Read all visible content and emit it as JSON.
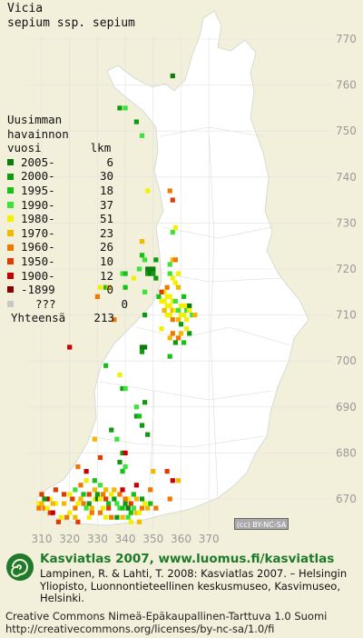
{
  "title": {
    "genus": "Vicia",
    "species": "sepium ssp. sepium"
  },
  "legend": {
    "heading_lines": [
      "Uusimman",
      "havainnon"
    ],
    "col_label": "vuosi",
    "col_count": "lkm",
    "items": [
      {
        "label": "2005-",
        "count": "6",
        "color": "#0b7d0b"
      },
      {
        "label": "2000-",
        "count": "30",
        "color": "#119a11"
      },
      {
        "label": "1995-",
        "count": "18",
        "color": "#18c018"
      },
      {
        "label": "1990-",
        "count": "37",
        "color": "#3ce33c"
      },
      {
        "label": "1980-",
        "count": "51",
        "color": "#f2f200"
      },
      {
        "label": "1970-",
        "count": "23",
        "color": "#f5b800"
      },
      {
        "label": "1960-",
        "count": "26",
        "color": "#f07800"
      },
      {
        "label": "1950-",
        "count": "10",
        "color": "#e03c00"
      },
      {
        "label": "1900-",
        "count": "12",
        "color": "#c80000"
      },
      {
        "label": "-1899",
        "count": "0",
        "color": "#880000"
      },
      {
        "label": "???",
        "count": "0",
        "color": "#c8c8c8"
      }
    ],
    "total_label": "Yhteensä",
    "total_value": "213"
  },
  "grid": {
    "x_labels": [
      "310",
      "320",
      "330",
      "340",
      "350",
      "360",
      "370"
    ],
    "y_labels": [
      "770",
      "760",
      "750",
      "740",
      "730",
      "720",
      "710",
      "700",
      "690",
      "680",
      "670"
    ]
  },
  "cc_badge": "(cc) BY-NC-SA",
  "footer": {
    "brand": "Kasviatlas 2007, www.luomus.fi/kasviatlas",
    "citation": "Lampinen, R. & Lahti, T. 2008: Kasviatlas 2007. – Helsingin Yliopisto, Luonnontieteellinen keskusmuseo, Kasvimuseo, Helsinki.",
    "license_line1": "Creative Commons Nimeä-Epäkaupallinen-Tarttuva 1.0 Suomi",
    "license_line2": "http://creativecommons.org/licenses/by-nc-sa/1.0/fi"
  },
  "observations": [
    {
      "e": 357,
      "n": 762,
      "c": 0
    },
    {
      "e": 338,
      "n": 755,
      "c": 1
    },
    {
      "e": 340,
      "n": 755,
      "c": 3
    },
    {
      "e": 344,
      "n": 752,
      "c": 1
    },
    {
      "e": 346,
      "n": 749,
      "c": 3
    },
    {
      "e": 348,
      "n": 737,
      "c": 4
    },
    {
      "e": 356,
      "n": 737,
      "c": 6
    },
    {
      "e": 357,
      "n": 735,
      "c": 7
    },
    {
      "e": 357,
      "n": 728,
      "c": 3
    },
    {
      "e": 358,
      "n": 729,
      "c": 4
    },
    {
      "e": 346,
      "n": 726,
      "c": 5
    },
    {
      "e": 347,
      "n": 722,
      "c": 3
    },
    {
      "e": 348,
      "n": 720,
      "c": 0
    },
    {
      "e": 349,
      "n": 720,
      "c": 0
    },
    {
      "e": 350,
      "n": 720,
      "c": 0
    },
    {
      "e": 348,
      "n": 719,
      "c": 1
    },
    {
      "e": 349,
      "n": 719,
      "c": 0
    },
    {
      "e": 350,
      "n": 719,
      "c": 1
    },
    {
      "e": 351,
      "n": 718,
      "c": 1
    },
    {
      "e": 351,
      "n": 722,
      "c": 1
    },
    {
      "e": 346,
      "n": 723,
      "c": 2
    },
    {
      "e": 345,
      "n": 720,
      "c": 3
    },
    {
      "e": 339,
      "n": 719,
      "c": 3
    },
    {
      "e": 340,
      "n": 719,
      "c": 2
    },
    {
      "e": 343,
      "n": 718,
      "c": 4
    },
    {
      "e": 347,
      "n": 715,
      "c": 3
    },
    {
      "e": 347,
      "n": 710,
      "c": 1
    },
    {
      "e": 340,
      "n": 716,
      "c": 2
    },
    {
      "e": 356,
      "n": 721,
      "c": 3
    },
    {
      "e": 357,
      "n": 722,
      "c": 5
    },
    {
      "e": 358,
      "n": 722,
      "c": 6
    },
    {
      "e": 359,
      "n": 719,
      "c": 4
    },
    {
      "e": 356,
      "n": 719,
      "c": 3
    },
    {
      "e": 357,
      "n": 718,
      "c": 4
    },
    {
      "e": 358,
      "n": 717,
      "c": 4
    },
    {
      "e": 359,
      "n": 716,
      "c": 5
    },
    {
      "e": 355,
      "n": 716,
      "c": 6
    },
    {
      "e": 354,
      "n": 715,
      "c": 4
    },
    {
      "e": 355,
      "n": 714,
      "c": 4
    },
    {
      "e": 356,
      "n": 714,
      "c": 4
    },
    {
      "e": 357,
      "n": 713,
      "c": 4
    },
    {
      "e": 358,
      "n": 713,
      "c": 3
    },
    {
      "e": 353,
      "n": 715,
      "c": 7
    },
    {
      "e": 352,
      "n": 714,
      "c": 2
    },
    {
      "e": 353,
      "n": 713,
      "c": 4
    },
    {
      "e": 354,
      "n": 713,
      "c": 4
    },
    {
      "e": 355,
      "n": 712,
      "c": 4
    },
    {
      "e": 356,
      "n": 712,
      "c": 4
    },
    {
      "e": 357,
      "n": 711,
      "c": 5
    },
    {
      "e": 358,
      "n": 711,
      "c": 4
    },
    {
      "e": 359,
      "n": 711,
      "c": 3
    },
    {
      "e": 360,
      "n": 712,
      "c": 4
    },
    {
      "e": 361,
      "n": 712,
      "c": 4
    },
    {
      "e": 362,
      "n": 712,
      "c": 4
    },
    {
      "e": 362,
      "n": 711,
      "c": 3
    },
    {
      "e": 363,
      "n": 712,
      "c": 0
    },
    {
      "e": 363,
      "n": 711,
      "c": 4
    },
    {
      "e": 361,
      "n": 710,
      "c": 4
    },
    {
      "e": 362,
      "n": 709,
      "c": 4
    },
    {
      "e": 364,
      "n": 710,
      "c": 3
    },
    {
      "e": 360,
      "n": 710,
      "c": 4
    },
    {
      "e": 359,
      "n": 709,
      "c": 5
    },
    {
      "e": 360,
      "n": 708,
      "c": 1
    },
    {
      "e": 356,
      "n": 710,
      "c": 4
    },
    {
      "e": 355,
      "n": 710,
      "c": 4
    },
    {
      "e": 354,
      "n": 711,
      "c": 5
    },
    {
      "e": 357,
      "n": 709,
      "c": 6
    },
    {
      "e": 365,
      "n": 710,
      "c": 5
    },
    {
      "e": 361,
      "n": 714,
      "c": 2
    },
    {
      "e": 346,
      "n": 703,
      "c": 0
    },
    {
      "e": 347,
      "n": 703,
      "c": 0
    },
    {
      "e": 346,
      "n": 702,
      "c": 1
    },
    {
      "e": 356,
      "n": 701,
      "c": 2
    },
    {
      "e": 353,
      "n": 707,
      "c": 4
    },
    {
      "e": 356,
      "n": 705,
      "c": 5
    },
    {
      "e": 357,
      "n": 706,
      "c": 6
    },
    {
      "e": 358,
      "n": 704,
      "c": 1
    },
    {
      "e": 359,
      "n": 705,
      "c": 6
    },
    {
      "e": 360,
      "n": 706,
      "c": 5
    },
    {
      "e": 361,
      "n": 704,
      "c": 2
    },
    {
      "e": 363,
      "n": 706,
      "c": 1
    },
    {
      "e": 362,
      "n": 707,
      "c": 4
    },
    {
      "e": 333,
      "n": 716,
      "c": 2
    },
    {
      "e": 334,
      "n": 716,
      "c": 5
    },
    {
      "e": 331,
      "n": 716,
      "c": 4
    },
    {
      "e": 330,
      "n": 714,
      "c": 6
    },
    {
      "e": 336,
      "n": 709,
      "c": 6
    },
    {
      "e": 320,
      "n": 703,
      "c": 8
    },
    {
      "e": 333,
      "n": 699,
      "c": 2
    },
    {
      "e": 338,
      "n": 697,
      "c": 4
    },
    {
      "e": 339,
      "n": 694,
      "c": 1
    },
    {
      "e": 340,
      "n": 694,
      "c": 3
    },
    {
      "e": 344,
      "n": 690,
      "c": 3
    },
    {
      "e": 344,
      "n": 688,
      "c": 1
    },
    {
      "e": 345,
      "n": 688,
      "c": 2
    },
    {
      "e": 347,
      "n": 691,
      "c": 1
    },
    {
      "e": 335,
      "n": 685,
      "c": 1
    },
    {
      "e": 337,
      "n": 683,
      "c": 3
    },
    {
      "e": 339,
      "n": 680,
      "c": 1
    },
    {
      "e": 340,
      "n": 680,
      "c": 8
    },
    {
      "e": 338,
      "n": 678,
      "c": 1
    },
    {
      "e": 339,
      "n": 676,
      "c": 2
    },
    {
      "e": 340,
      "n": 677,
      "c": 3
    },
    {
      "e": 346,
      "n": 686,
      "c": 1
    },
    {
      "e": 348,
      "n": 684,
      "c": 1
    },
    {
      "e": 350,
      "n": 676,
      "c": 5
    },
    {
      "e": 349,
      "n": 672,
      "c": 6
    },
    {
      "e": 355,
      "n": 676,
      "c": 7
    },
    {
      "e": 357,
      "n": 674,
      "c": 8
    },
    {
      "e": 359,
      "n": 674,
      "c": 5
    },
    {
      "e": 356,
      "n": 670,
      "c": 6
    },
    {
      "e": 329,
      "n": 683,
      "c": 5
    },
    {
      "e": 331,
      "n": 679,
      "c": 7
    },
    {
      "e": 323,
      "n": 677,
      "c": 6
    },
    {
      "e": 326,
      "n": 676,
      "c": 8
    },
    {
      "e": 329,
      "n": 674,
      "c": 2
    },
    {
      "e": 325,
      "n": 671,
      "c": 2
    },
    {
      "e": 327,
      "n": 671,
      "c": 7
    },
    {
      "e": 329,
      "n": 670,
      "c": 4
    },
    {
      "e": 330,
      "n": 671,
      "c": 1
    },
    {
      "e": 330,
      "n": 670,
      "c": 0
    },
    {
      "e": 331,
      "n": 670,
      "c": 4
    },
    {
      "e": 332,
      "n": 671,
      "c": 6
    },
    {
      "e": 333,
      "n": 670,
      "c": 7
    },
    {
      "e": 334,
      "n": 669,
      "c": 2
    },
    {
      "e": 336,
      "n": 672,
      "c": 5
    },
    {
      "e": 338,
      "n": 671,
      "c": 6
    },
    {
      "e": 339,
      "n": 672,
      "c": 8
    },
    {
      "e": 336,
      "n": 670,
      "c": 1
    },
    {
      "e": 337,
      "n": 669,
      "c": 3
    },
    {
      "e": 338,
      "n": 668,
      "c": 3
    },
    {
      "e": 339,
      "n": 668,
      "c": 2
    },
    {
      "e": 340,
      "n": 669,
      "c": 1
    },
    {
      "e": 341,
      "n": 668,
      "c": 0
    },
    {
      "e": 342,
      "n": 669,
      "c": 7
    },
    {
      "e": 343,
      "n": 668,
      "c": 3
    },
    {
      "e": 342,
      "n": 667,
      "c": 2
    },
    {
      "e": 341,
      "n": 666,
      "c": 3
    },
    {
      "e": 344,
      "n": 667,
      "c": 5
    },
    {
      "e": 345,
      "n": 667,
      "c": 4
    },
    {
      "e": 346,
      "n": 668,
      "c": 6
    },
    {
      "e": 348,
      "n": 668,
      "c": 5
    },
    {
      "e": 349,
      "n": 669,
      "c": 2
    },
    {
      "e": 343,
      "n": 671,
      "c": 2
    },
    {
      "e": 344,
      "n": 673,
      "c": 8
    },
    {
      "e": 334,
      "n": 668,
      "c": 7
    },
    {
      "e": 332,
      "n": 668,
      "c": 4
    },
    {
      "e": 328,
      "n": 668,
      "c": 5
    },
    {
      "e": 327,
      "n": 669,
      "c": 1
    },
    {
      "e": 326,
      "n": 668,
      "c": 3
    },
    {
      "e": 325,
      "n": 669,
      "c": 6
    },
    {
      "e": 324,
      "n": 670,
      "c": 5
    },
    {
      "e": 323,
      "n": 669,
      "c": 4
    },
    {
      "e": 322,
      "n": 668,
      "c": 6
    },
    {
      "e": 321,
      "n": 670,
      "c": 7
    },
    {
      "e": 322,
      "n": 672,
      "c": 3
    },
    {
      "e": 318,
      "n": 669,
      "c": 5
    },
    {
      "e": 320,
      "n": 667,
      "c": 4
    },
    {
      "e": 319,
      "n": 666,
      "c": 6
    },
    {
      "e": 317,
      "n": 666,
      "c": 4
    },
    {
      "e": 313,
      "n": 670,
      "c": 4
    },
    {
      "e": 312,
      "n": 670,
      "c": 8
    },
    {
      "e": 311,
      "n": 670,
      "c": 1
    },
    {
      "e": 310,
      "n": 671,
      "c": 7
    },
    {
      "e": 309,
      "n": 669,
      "c": 4
    },
    {
      "e": 310,
      "n": 669,
      "c": 5
    },
    {
      "e": 311,
      "n": 668,
      "c": 6
    },
    {
      "e": 312,
      "n": 668,
      "c": 4
    },
    {
      "e": 313,
      "n": 667,
      "c": 7
    },
    {
      "e": 314,
      "n": 667,
      "c": 8
    },
    {
      "e": 315,
      "n": 669,
      "c": 4
    },
    {
      "e": 309,
      "n": 668,
      "c": 6
    },
    {
      "e": 335,
      "n": 666,
      "c": 6
    },
    {
      "e": 333,
      "n": 666,
      "c": 4
    },
    {
      "e": 328,
      "n": 667,
      "c": 6
    },
    {
      "e": 323,
      "n": 665,
      "c": 7
    },
    {
      "e": 316,
      "n": 665,
      "c": 7
    },
    {
      "e": 345,
      "n": 665,
      "c": 5
    },
    {
      "e": 331,
      "n": 673,
      "c": 3
    },
    {
      "e": 315,
      "n": 672,
      "c": 7
    },
    {
      "e": 326,
      "n": 674,
      "c": 4
    },
    {
      "e": 318,
      "n": 671,
      "c": 7
    },
    {
      "e": 341,
      "n": 670,
      "c": 4
    },
    {
      "e": 351,
      "n": 668,
      "c": 6
    },
    {
      "e": 337,
      "n": 666,
      "c": 1
    },
    {
      "e": 329,
      "n": 672,
      "c": 5
    },
    {
      "e": 333,
      "n": 672,
      "c": 5
    },
    {
      "e": 346,
      "n": 670,
      "c": 1
    },
    {
      "e": 342,
      "n": 665,
      "c": 4
    },
    {
      "e": 320,
      "n": 671,
      "c": 4
    },
    {
      "e": 314,
      "n": 669,
      "c": 5
    },
    {
      "e": 324,
      "n": 673,
      "c": 6
    },
    {
      "e": 339,
      "n": 666,
      "c": 5
    },
    {
      "e": 340,
      "n": 670,
      "c": 6
    },
    {
      "e": 322,
      "n": 666,
      "c": 5
    },
    {
      "e": 347,
      "n": 669,
      "c": 4
    },
    {
      "e": 335,
      "n": 671,
      "c": 4
    },
    {
      "e": 344,
      "n": 670,
      "c": 5
    },
    {
      "e": 327,
      "n": 666,
      "c": 4
    },
    {
      "e": 331,
      "n": 667,
      "c": 6
    }
  ]
}
